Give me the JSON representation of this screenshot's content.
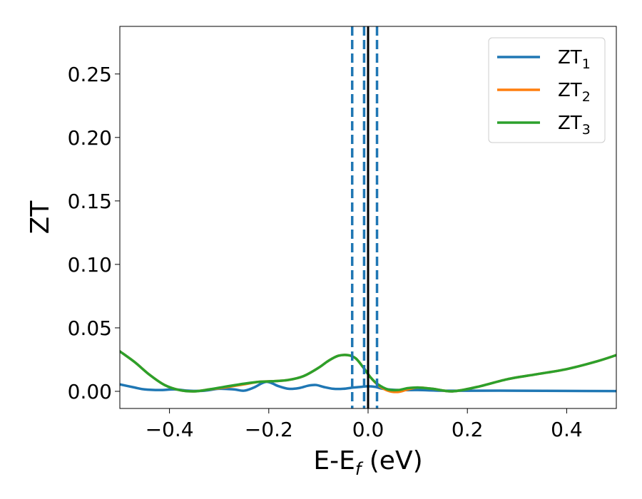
{
  "chart_data": {
    "type": "line",
    "title": "",
    "xlabel": {
      "main": "E-E",
      "sub": "f",
      "suffix": " (eV)"
    },
    "ylabel": "ZT",
    "xlim": [
      -0.5,
      0.5
    ],
    "ylim": [
      -0.0135,
      0.2875
    ],
    "xticks": [
      -0.4,
      -0.2,
      0.0,
      0.2,
      0.4
    ],
    "xtick_labels": [
      "−0.4",
      "−0.2",
      "0.0",
      "0.2",
      "0.4"
    ],
    "yticks": [
      0.0,
      0.05,
      0.1,
      0.15,
      0.2,
      0.25
    ],
    "ytick_labels": [
      "0.00",
      "0.05",
      "0.10",
      "0.15",
      "0.20",
      "0.25"
    ],
    "grid": false,
    "legend_position": "top-right",
    "vlines": [
      {
        "x": -0.032,
        "style": "dashed",
        "color": "#1f77b4"
      },
      {
        "x": -0.008,
        "style": "dashed",
        "color": "#1f77b4"
      },
      {
        "x": 0.018,
        "style": "dashed",
        "color": "#1f77b4"
      },
      {
        "x": 0.0,
        "style": "solid",
        "color": "#000000"
      }
    ],
    "series": [
      {
        "name": "ZT",
        "sub": "1",
        "color": "#1f77b4",
        "x": [
          -0.5,
          -0.47,
          -0.45,
          -0.42,
          -0.39,
          -0.36,
          -0.33,
          -0.3,
          -0.27,
          -0.25,
          -0.23,
          -0.205,
          -0.18,
          -0.16,
          -0.14,
          -0.12,
          -0.105,
          -0.09,
          -0.07,
          -0.05,
          -0.03,
          -0.015,
          0.0,
          0.015,
          0.03,
          0.06,
          0.1,
          0.15,
          0.2,
          0.3,
          0.4,
          0.5
        ],
        "y": [
          0.0055,
          0.003,
          0.0015,
          0.001,
          0.0015,
          0.0005,
          0.0005,
          0.002,
          0.0015,
          0.0005,
          0.003,
          0.0075,
          0.004,
          0.002,
          0.0025,
          0.0045,
          0.005,
          0.0035,
          0.002,
          0.002,
          0.003,
          0.0035,
          0.004,
          0.0035,
          0.002,
          0.001,
          0.001,
          0.0005,
          0.0005,
          0.0005,
          0.0003,
          0.0002
        ]
      },
      {
        "name": "ZT",
        "sub": "2",
        "color": "#ff7f0e",
        "x": [
          -0.5,
          -0.47,
          -0.44,
          -0.41,
          -0.38,
          -0.35,
          -0.32,
          -0.29,
          -0.25,
          -0.22,
          -0.19,
          -0.16,
          -0.13,
          -0.1,
          -0.08,
          -0.06,
          -0.04,
          -0.025,
          -0.01,
          0.005,
          0.02,
          0.04,
          0.06,
          0.08,
          0.1,
          0.13,
          0.17,
          0.22,
          0.28,
          0.34,
          0.4,
          0.46,
          0.5
        ],
        "y": [
          0.0315,
          0.023,
          0.013,
          0.005,
          0.001,
          0.0,
          0.0015,
          0.003,
          0.0055,
          0.0075,
          0.008,
          0.009,
          0.012,
          0.0185,
          0.024,
          0.028,
          0.0285,
          0.026,
          0.019,
          0.011,
          0.005,
          0.0005,
          -0.0005,
          0.0015,
          0.003,
          0.002,
          0.0,
          0.0035,
          0.0095,
          0.0135,
          0.0175,
          0.0235,
          0.0285
        ]
      },
      {
        "name": "ZT",
        "sub": "3",
        "color": "#2ca02c",
        "x": [
          -0.5,
          -0.47,
          -0.44,
          -0.41,
          -0.38,
          -0.35,
          -0.32,
          -0.29,
          -0.25,
          -0.22,
          -0.19,
          -0.16,
          -0.13,
          -0.1,
          -0.08,
          -0.06,
          -0.04,
          -0.025,
          -0.01,
          0.005,
          0.02,
          0.04,
          0.06,
          0.08,
          0.1,
          0.13,
          0.17,
          0.22,
          0.28,
          0.34,
          0.4,
          0.46,
          0.5
        ],
        "y": [
          0.0315,
          0.023,
          0.013,
          0.005,
          0.001,
          0.0,
          0.0015,
          0.0035,
          0.006,
          0.0075,
          0.008,
          0.009,
          0.012,
          0.0185,
          0.024,
          0.028,
          0.0285,
          0.026,
          0.019,
          0.011,
          0.0055,
          0.0015,
          0.001,
          0.0025,
          0.003,
          0.002,
          0.0,
          0.0035,
          0.0095,
          0.0135,
          0.0175,
          0.0235,
          0.0285
        ]
      }
    ]
  }
}
